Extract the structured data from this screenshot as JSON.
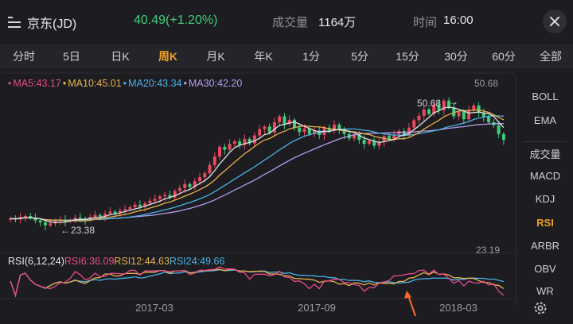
{
  "header": {
    "stock_name": "京东(JD)",
    "price_change": "40.49(+1.20%)",
    "volume_label": "成交量",
    "volume_value": "1164万",
    "time_label": "时间",
    "time_value": "16:00",
    "icons": {
      "menu": "list-icon",
      "close": "close-icon"
    }
  },
  "tabs": [
    {
      "label": "分时"
    },
    {
      "label": "5日"
    },
    {
      "label": "日K"
    },
    {
      "label": "周K",
      "active": true
    },
    {
      "label": "月K"
    },
    {
      "label": "年K"
    },
    {
      "label": "1分"
    },
    {
      "label": "5分"
    },
    {
      "label": "15分"
    },
    {
      "label": "30分"
    },
    {
      "label": "60分"
    },
    {
      "label": "全部"
    }
  ],
  "side_indicators": {
    "overlays": [
      {
        "label": "BOLL"
      },
      {
        "label": "EMA"
      }
    ],
    "subcharts": [
      {
        "label": "成交量"
      },
      {
        "label": "MACD"
      },
      {
        "label": "KDJ"
      },
      {
        "label": "RSI",
        "active": true
      },
      {
        "label": "ARBR"
      },
      {
        "label": "OBV"
      },
      {
        "label": "WR"
      }
    ],
    "settings_icon": "gear-icon"
  },
  "ma_legend": {
    "ma5": "MA5:43.17",
    "ma10": "MA10:45.01",
    "ma20": "MA20:43.34",
    "ma30": "MA30:42.20"
  },
  "rsi_legend": {
    "name": "RSI(6,12,24)",
    "rsi6": "RSI6:36.09",
    "rsi12": "RSI12:44.63",
    "rsi24": "RSI24:49.66"
  },
  "chart_labels": {
    "axis_max": "50.68",
    "axis_min": "23.19",
    "high_marker": "50.68",
    "low_marker": "23.38"
  },
  "x_dates": [
    "2017-03",
    "2017-09",
    "2018-03"
  ],
  "colors": {
    "up": "#e84a5f",
    "down": "#3fcf7a",
    "ma5": "#e0e0e4",
    "ma10": "#e8b24c",
    "ma20": "#4ab2e6",
    "ma30": "#b49cf0",
    "rsi6": "#e84a8a",
    "rsi12": "#e8b24c",
    "rsi24": "#4ab2e6",
    "accent": "#f0a020",
    "annotation_arrow": "#ff6a2a"
  },
  "chart_data": {
    "type": "candlestick",
    "ylim": [
      23.19,
      50.68
    ],
    "closes": [
      25.6,
      25.4,
      25.9,
      26.1,
      25.7,
      25.2,
      24.8,
      24.2,
      24.6,
      25.1,
      25.4,
      25.0,
      25.3,
      25.8,
      25.6,
      25.3,
      25.9,
      26.3,
      26.0,
      26.6,
      27.0,
      26.7,
      27.2,
      27.5,
      27.9,
      28.4,
      28.0,
      28.7,
      29.2,
      29.6,
      30.1,
      30.4,
      29.9,
      31.2,
      31.8,
      32.6,
      32.0,
      33.2,
      34.0,
      34.8,
      36.5,
      38.2,
      40.2,
      39.6,
      40.8,
      41.3,
      40.6,
      41.8,
      40.9,
      42.5,
      43.8,
      44.3,
      43.1,
      45.2,
      46.4,
      44.8,
      45.7,
      44.1,
      43.2,
      43.9,
      42.8,
      43.5,
      42.6,
      44.1,
      43.4,
      44.7,
      43.6,
      42.8,
      41.9,
      42.7,
      41.6,
      40.8,
      41.4,
      40.4,
      41.2,
      42.4,
      41.8,
      42.7,
      43.4,
      42.6,
      44.1,
      45.6,
      46.5,
      47.8,
      46.9,
      48.8,
      47.6,
      49.6,
      48.2,
      46.4,
      47.3,
      45.8,
      47.6,
      48.6,
      47.1,
      46.3,
      45.2,
      44.6,
      42.8,
      41.6
    ],
    "opens": [
      25.3,
      25.6,
      25.4,
      25.9,
      26.1,
      25.7,
      25.2,
      24.8,
      24.2,
      24.6,
      25.1,
      25.4,
      25.0,
      25.3,
      25.8,
      25.6,
      25.3,
      25.9,
      26.3,
      26.0,
      26.6,
      27.0,
      26.7,
      27.2,
      27.5,
      27.9,
      28.4,
      28.0,
      28.7,
      29.2,
      29.6,
      30.1,
      30.4,
      29.9,
      31.2,
      31.8,
      32.6,
      32.0,
      33.2,
      34.0,
      34.8,
      36.5,
      38.2,
      40.2,
      39.6,
      40.8,
      41.3,
      40.6,
      41.8,
      40.9,
      42.5,
      43.8,
      44.3,
      43.1,
      45.2,
      46.4,
      44.8,
      45.7,
      44.1,
      43.2,
      43.9,
      42.8,
      43.5,
      42.6,
      44.1,
      43.4,
      44.7,
      43.6,
      42.8,
      41.9,
      42.7,
      41.6,
      40.8,
      41.4,
      40.4,
      41.2,
      42.4,
      41.8,
      42.7,
      43.4,
      42.6,
      44.1,
      45.6,
      46.5,
      47.8,
      46.9,
      48.8,
      47.6,
      49.6,
      48.2,
      46.4,
      47.3,
      45.8,
      47.6,
      48.6,
      47.1,
      46.3,
      45.2,
      44.6,
      42.8
    ],
    "ma5_value": 43.17,
    "ma10_value": 45.01,
    "ma20_value": 43.34,
    "ma30_value": 42.2,
    "rsi6_value": 36.09,
    "rsi12_value": 44.63,
    "rsi24_value": 49.66
  }
}
